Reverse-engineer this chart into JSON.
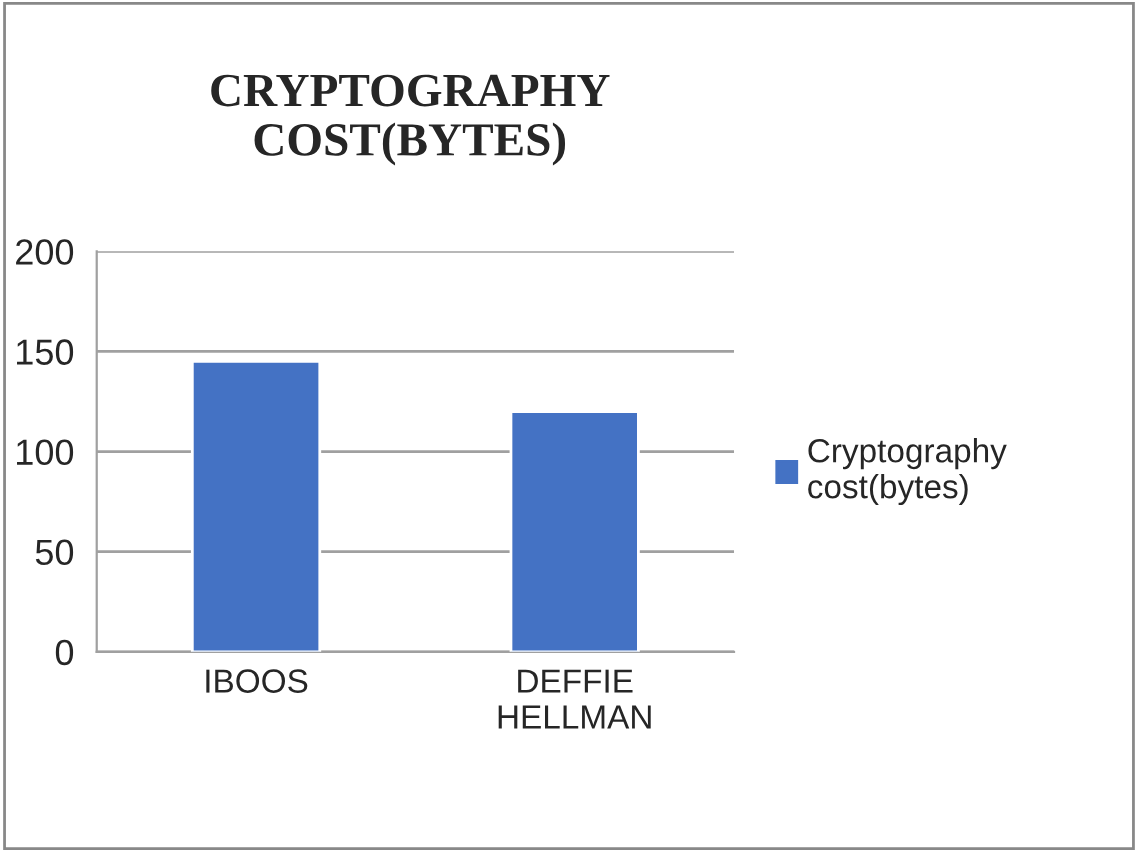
{
  "chart_data": {
    "type": "bar",
    "title": "CRYPTOGRAPHY\nCOST(BYTES)",
    "categories": [
      "IBOOS",
      "DEFFIE\nHELLMAN"
    ],
    "series": [
      {
        "name": "Cryptography\ncost(bytes)",
        "color": "#4472c4",
        "values": [
          145,
          120
        ]
      }
    ],
    "ylim": [
      0,
      200
    ],
    "yticks": [
      0,
      50,
      100,
      150,
      200
    ],
    "grid": "y",
    "legend": "right"
  }
}
